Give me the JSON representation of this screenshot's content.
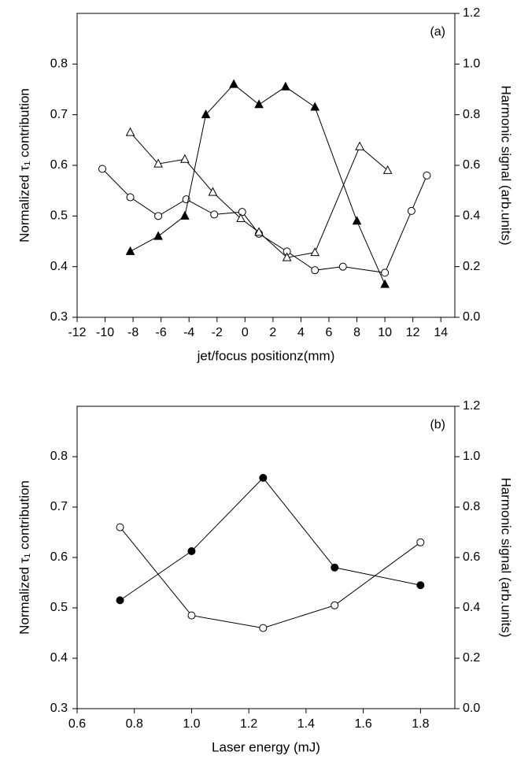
{
  "chart_data": [
    {
      "type": "line",
      "annotation": "(a)",
      "xlabel": "jet/focus positionz(mm)",
      "ylabel": "Normalized τ₁ contribution",
      "y2label": "Harmonic signal (arb.units)",
      "xlim": [
        -12,
        15
      ],
      "xticks": [
        -12,
        -10,
        -8,
        -6,
        -4,
        -2,
        0,
        2,
        4,
        6,
        8,
        10,
        12,
        14
      ],
      "ylim": [
        0.3,
        0.9
      ],
      "yticks": [
        0.3,
        0.4,
        0.5,
        0.6,
        0.7,
        0.8
      ],
      "y2lim": [
        0,
        1.2
      ],
      "y2ticks": [
        {
          "value": 0,
          "label": "0.0"
        },
        0.2,
        0.4,
        0.6,
        0.8,
        {
          "value": 1,
          "label": "1.0"
        },
        1.2
      ],
      "series": [
        {
          "marker": "circle",
          "filled": false,
          "color": "#000000",
          "x": [
            -10.2,
            -8.2,
            -6.2,
            -4.2,
            -2.2,
            -0.2,
            1.0,
            3.0,
            5.0,
            7.0,
            10.0,
            11.9,
            13.0
          ],
          "values": [
            0.593,
            0.537,
            0.5,
            0.533,
            0.503,
            0.508,
            0.465,
            0.43,
            0.393,
            0.4,
            0.388,
            0.51,
            0.58
          ]
        },
        {
          "marker": "triangle",
          "filled": false,
          "color": "#000000",
          "x": [
            -8.2,
            -6.2,
            -4.3,
            -2.3,
            -0.3,
            1.0,
            3.0,
            5.0,
            8.2,
            10.2
          ],
          "values": [
            0.665,
            0.603,
            0.612,
            0.547,
            0.495,
            0.468,
            0.418,
            0.428,
            0.637,
            0.59
          ]
        },
        {
          "marker": "triangle",
          "filled": true,
          "color": "#000000",
          "axis": "y2",
          "x": [
            -8.2,
            -6.2,
            -4.3,
            -2.8,
            -0.8,
            1.0,
            2.9,
            5.0,
            8.0,
            10.0
          ],
          "values": [
            0.26,
            0.32,
            0.4,
            0.8,
            0.92,
            0.84,
            0.91,
            0.83,
            0.38,
            0.13
          ]
        }
      ]
    },
    {
      "type": "line",
      "annotation": "(b)",
      "xlabel": "Laser energy (mJ)",
      "ylabel": "Normalized τ₁ contribution",
      "y2label": "Harmonic signal (arb.units)",
      "xlim": [
        0.6,
        1.92
      ],
      "xticks": [
        0.6,
        0.8,
        {
          "value": 1,
          "label": "1.0"
        },
        1.2,
        1.4,
        1.6,
        1.8
      ],
      "ylim": [
        0.3,
        0.9
      ],
      "yticks": [
        0.3,
        0.4,
        0.5,
        0.6,
        0.7,
        0.8
      ],
      "y2lim": [
        0,
        1.2
      ],
      "y2ticks": [
        {
          "value": 0,
          "label": "0.0"
        },
        0.2,
        0.4,
        0.6,
        0.8,
        {
          "value": 1,
          "label": "1.0"
        },
        1.2
      ],
      "series": [
        {
          "marker": "circle",
          "filled": false,
          "color": "#000000",
          "x": [
            0.75,
            1.0,
            1.25,
            1.5,
            1.8
          ],
          "values": [
            0.66,
            0.485,
            0.46,
            0.505,
            0.63
          ]
        },
        {
          "marker": "circle",
          "filled": true,
          "color": "#000000",
          "axis": "y2",
          "x": [
            0.75,
            1.0,
            1.25,
            1.5,
            1.8
          ],
          "values": [
            0.43,
            0.625,
            0.916,
            0.56,
            0.49
          ]
        }
      ]
    }
  ]
}
